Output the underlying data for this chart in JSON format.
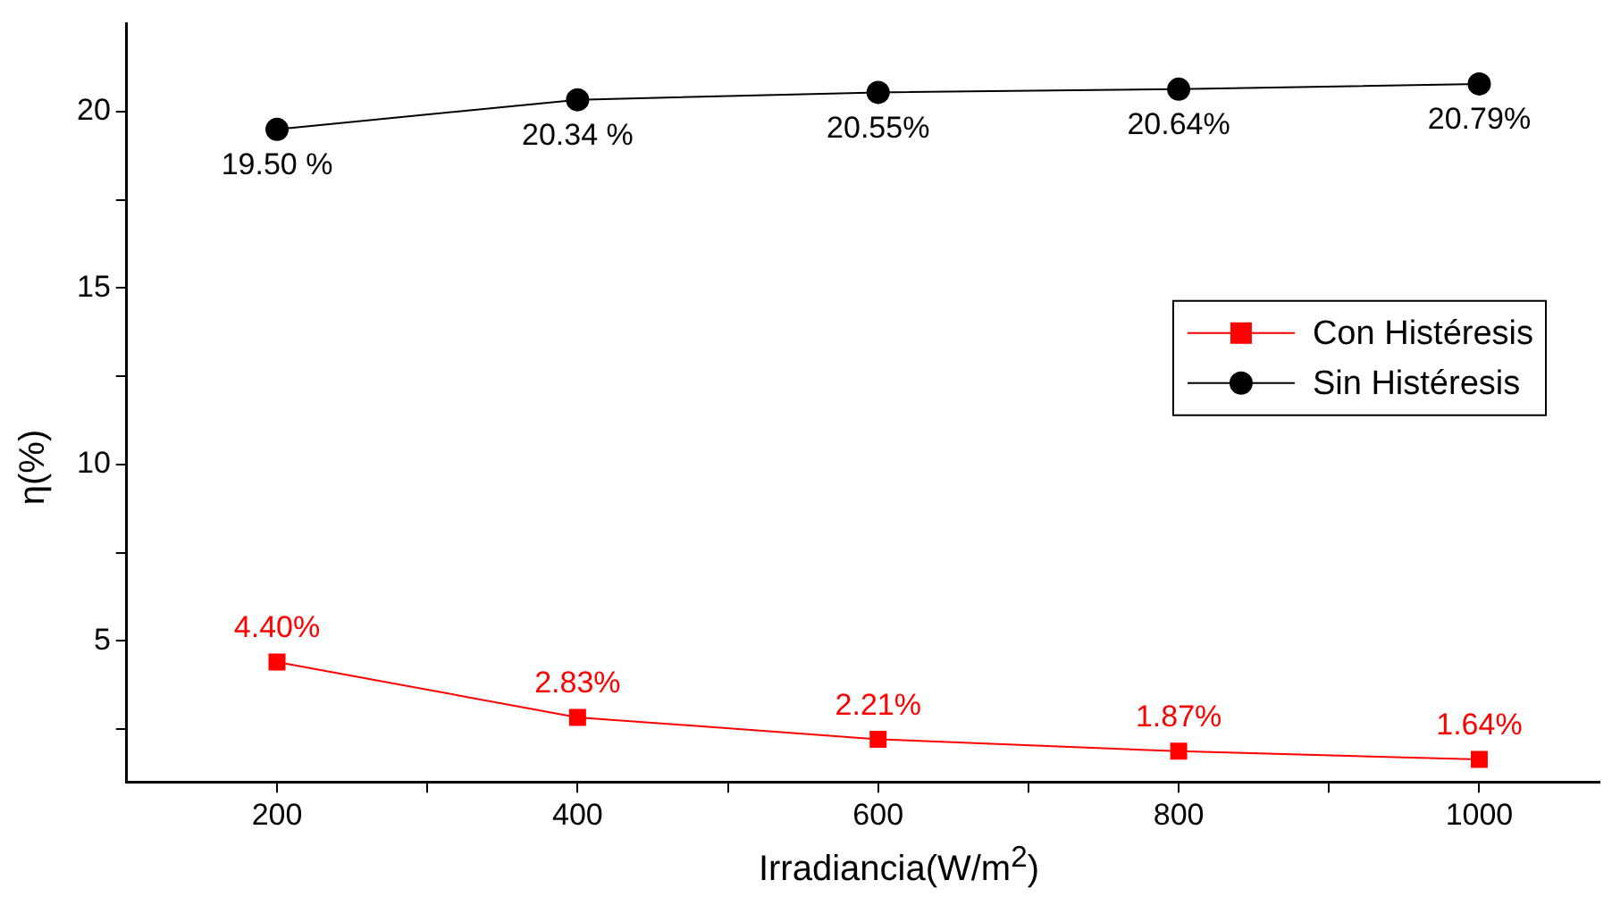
{
  "chart_data": {
    "type": "line",
    "xlabel": "Irradiancia(W/m$^{2}$)",
    "ylabel": "η(%)",
    "x": [
      200,
      400,
      600,
      800,
      1000
    ],
    "series": [
      {
        "name": "Con Histéresis",
        "color": "#ff0000",
        "marker": "square",
        "values": [
          4.4,
          2.83,
          2.21,
          1.87,
          1.64
        ],
        "value_labels": [
          "4.40%",
          "2.83%",
          "2.21%",
          "1.87%",
          "1.64%"
        ]
      },
      {
        "name": "Sin Histéresis",
        "color": "#000000",
        "marker": "circle",
        "values": [
          19.5,
          20.34,
          20.55,
          20.64,
          20.79
        ],
        "value_labels": [
          "19.50 %",
          "20.34 %",
          "20.55%",
          "20.64%",
          "20.79%"
        ]
      }
    ],
    "xlim": [
      100,
      1080
    ],
    "xticks": [
      200,
      {
        "value": 300,
        "label": null
      },
      400,
      {
        "value": 500,
        "label": null
      },
      600,
      {
        "value": 700,
        "label": null
      },
      800,
      {
        "value": 900,
        "label": null
      },
      1000
    ],
    "ylim": [
      1,
      22.5
    ],
    "yticks": [
      {
        "value": 2.5,
        "label": null
      },
      5,
      {
        "value": 7.5,
        "label": null
      },
      10,
      {
        "value": 12.5,
        "label": null
      },
      15,
      {
        "value": 17.5,
        "label": null
      },
      20
    ],
    "grid": false,
    "legend": "center right",
    "line_style": "solid"
  }
}
